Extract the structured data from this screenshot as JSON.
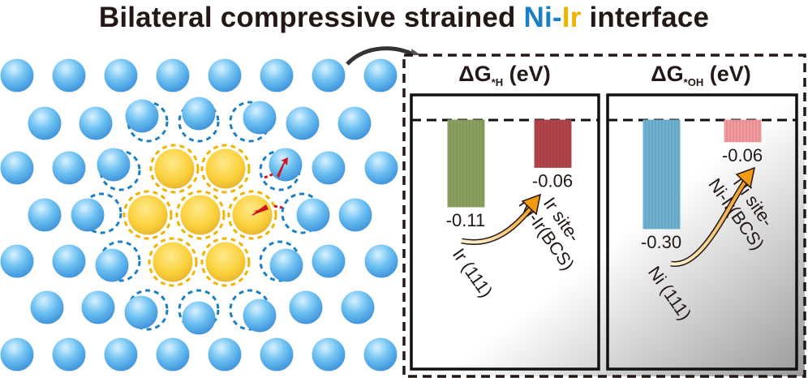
{
  "title": {
    "part1": "Bilateral compressive strained ",
    "ni": "Ni",
    "dash": "-",
    "ir": "Ir",
    "part2": " interface"
  },
  "colors": {
    "ni": "#1a7fc4",
    "ir": "#f0b400",
    "text": "#231815",
    "arrow": "#f5a623",
    "strain_arrow": "#d0121b"
  },
  "panels": [
    {
      "title_main": "ΔG",
      "title_sub": "*H",
      "title_unit": " (eV)",
      "bars": [
        {
          "label_line1": "Ir (111)",
          "label_line2": "",
          "value": -0.11,
          "value_label": "-0.11",
          "color": "#8ba15f"
        },
        {
          "label_line1": "Ir site-",
          "label_line2": "Ni-Ir(BCS)",
          "value": -0.06,
          "value_label": "-0.06",
          "color": "#b2454a"
        }
      ]
    },
    {
      "title_main": "ΔG",
      "title_sub": "*OH",
      "title_unit": " (eV)",
      "bars": [
        {
          "label_line1": "Ni (111)",
          "label_line2": "",
          "value": -0.3,
          "value_label": "-0.30",
          "color": "#6fb2cf"
        },
        {
          "label_line1": "Ni site-",
          "label_line2": "Ni-Ir(BCS)",
          "value": -0.06,
          "value_label": "-0.06",
          "color": "#f39a9e"
        }
      ]
    }
  ]
}
